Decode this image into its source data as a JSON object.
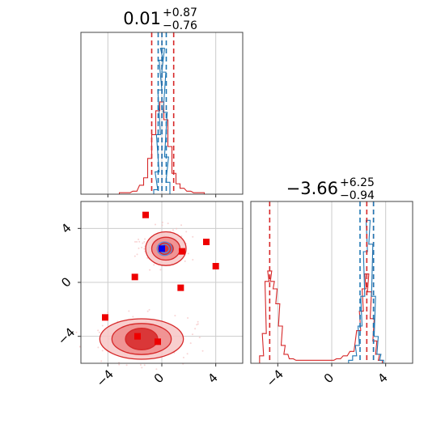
{
  "chart_data": [
    {
      "panel": "top-left",
      "type": "histogram",
      "title": {
        "main": "0.01",
        "sup": "+0.87",
        "sub": "−0.76"
      },
      "xlim": [
        -6,
        6
      ],
      "grid": true,
      "vlines": {
        "red": [
          -0.75,
          0.01,
          0.88
        ],
        "blue": [
          -0.27,
          0.01,
          0.33
        ]
      },
      "series": [
        {
          "color": "#d62728",
          "bins": [
            [
              -3.0,
              0.01
            ],
            [
              -2.5,
              0.01
            ],
            [
              -2.0,
              0.02
            ],
            [
              -1.5,
              0.06
            ],
            [
              -1.2,
              0.11
            ],
            [
              -0.9,
              0.24
            ],
            [
              -0.6,
              0.4
            ],
            [
              -0.3,
              0.56
            ],
            [
              0.0,
              0.62
            ],
            [
              0.3,
              0.5
            ],
            [
              0.6,
              0.32
            ],
            [
              0.9,
              0.14
            ],
            [
              1.2,
              0.07
            ],
            [
              1.5,
              0.04
            ],
            [
              2.0,
              0.02
            ],
            [
              2.5,
              0.01
            ],
            [
              3.0,
              0.01
            ]
          ]
        },
        {
          "color": "#1f77b4",
          "bins": [
            [
              -0.45,
              0.03
            ],
            [
              -0.35,
              0.15
            ],
            [
              -0.25,
              0.4
            ],
            [
              -0.15,
              0.7
            ],
            [
              -0.05,
              0.9
            ],
            [
              0.05,
              0.98
            ],
            [
              0.15,
              0.82
            ],
            [
              0.25,
              0.55
            ],
            [
              0.35,
              0.25
            ],
            [
              0.45,
              0.08
            ]
          ]
        }
      ]
    },
    {
      "panel": "bottom-left",
      "type": "scatter-contour",
      "xlim": [
        -6,
        6
      ],
      "ylim": [
        -6,
        6
      ],
      "x_ticks": [
        "−4",
        "0",
        "4"
      ],
      "y_ticks": [
        "−4",
        "0",
        "4"
      ],
      "tick_values": [
        -4,
        0,
        4
      ],
      "grid": true,
      "markers": [
        {
          "x": -1.2,
          "y": 5.0
        },
        {
          "x": 3.3,
          "y": 3.0
        },
        {
          "x": 1.5,
          "y": 2.3
        },
        {
          "x": 4.0,
          "y": 1.2
        },
        {
          "x": -2.0,
          "y": 0.4
        },
        {
          "x": 1.4,
          "y": -0.4
        },
        {
          "x": -4.2,
          "y": -2.6
        },
        {
          "x": -1.8,
          "y": -4.0
        },
        {
          "x": -0.3,
          "y": -4.4
        }
      ],
      "blue_marker": {
        "x": 0.0,
        "y": 2.5
      },
      "clusters": [
        {
          "cx": 0.3,
          "cy": 2.5,
          "rx": [
            1.5,
            1.05,
            0.55
          ],
          "ry": [
            1.25,
            0.85,
            0.45
          ]
        },
        {
          "cx": -1.5,
          "cy": -4.2,
          "rx": [
            3.1,
            2.2,
            1.2
          ],
          "ry": [
            1.5,
            1.15,
            0.8
          ]
        }
      ]
    },
    {
      "panel": "bottom-right",
      "type": "histogram",
      "title": {
        "main": "−3.66",
        "sup": "+6.25",
        "sub": "−0.94"
      },
      "xlim": [
        -6,
        6
      ],
      "x_ticks": [
        "−4",
        "0",
        "4"
      ],
      "tick_values": [
        -4,
        0,
        4
      ],
      "grid": true,
      "vlines": {
        "red": [
          -4.6,
          2.6,
          3.1
        ],
        "blue": [
          2.1,
          3.1
        ]
      },
      "series": [
        {
          "color": "#d62728",
          "bins": [
            [
              -5.2,
              0.05
            ],
            [
              -5.0,
              0.2
            ],
            [
              -4.8,
              0.55
            ],
            [
              -4.6,
              0.62
            ],
            [
              -4.4,
              0.55
            ],
            [
              -4.2,
              0.5
            ],
            [
              -4.0,
              0.4
            ],
            [
              -3.8,
              0.25
            ],
            [
              -3.6,
              0.12
            ],
            [
              -3.4,
              0.06
            ],
            [
              -3.0,
              0.03
            ],
            [
              -2.5,
              0.02
            ],
            [
              0.0,
              0.02
            ],
            [
              0.5,
              0.03
            ],
            [
              1.0,
              0.05
            ],
            [
              1.5,
              0.08
            ],
            [
              2.0,
              0.22
            ],
            [
              2.2,
              0.35
            ],
            [
              2.4,
              0.5
            ],
            [
              2.6,
              0.6
            ],
            [
              2.8,
              0.48
            ],
            [
              3.0,
              0.3
            ],
            [
              3.2,
              0.15
            ],
            [
              3.4,
              0.06
            ],
            [
              3.6,
              0.02
            ]
          ]
        },
        {
          "color": "#1f77b4",
          "bins": [
            [
              1.4,
              0.02
            ],
            [
              1.7,
              0.05
            ],
            [
              1.9,
              0.12
            ],
            [
              2.1,
              0.25
            ],
            [
              2.3,
              0.45
            ],
            [
              2.5,
              0.75
            ],
            [
              2.7,
              0.96
            ],
            [
              2.9,
              0.8
            ],
            [
              3.1,
              0.45
            ],
            [
              3.3,
              0.18
            ],
            [
              3.5,
              0.06
            ],
            [
              3.7,
              0.02
            ]
          ]
        }
      ]
    }
  ]
}
